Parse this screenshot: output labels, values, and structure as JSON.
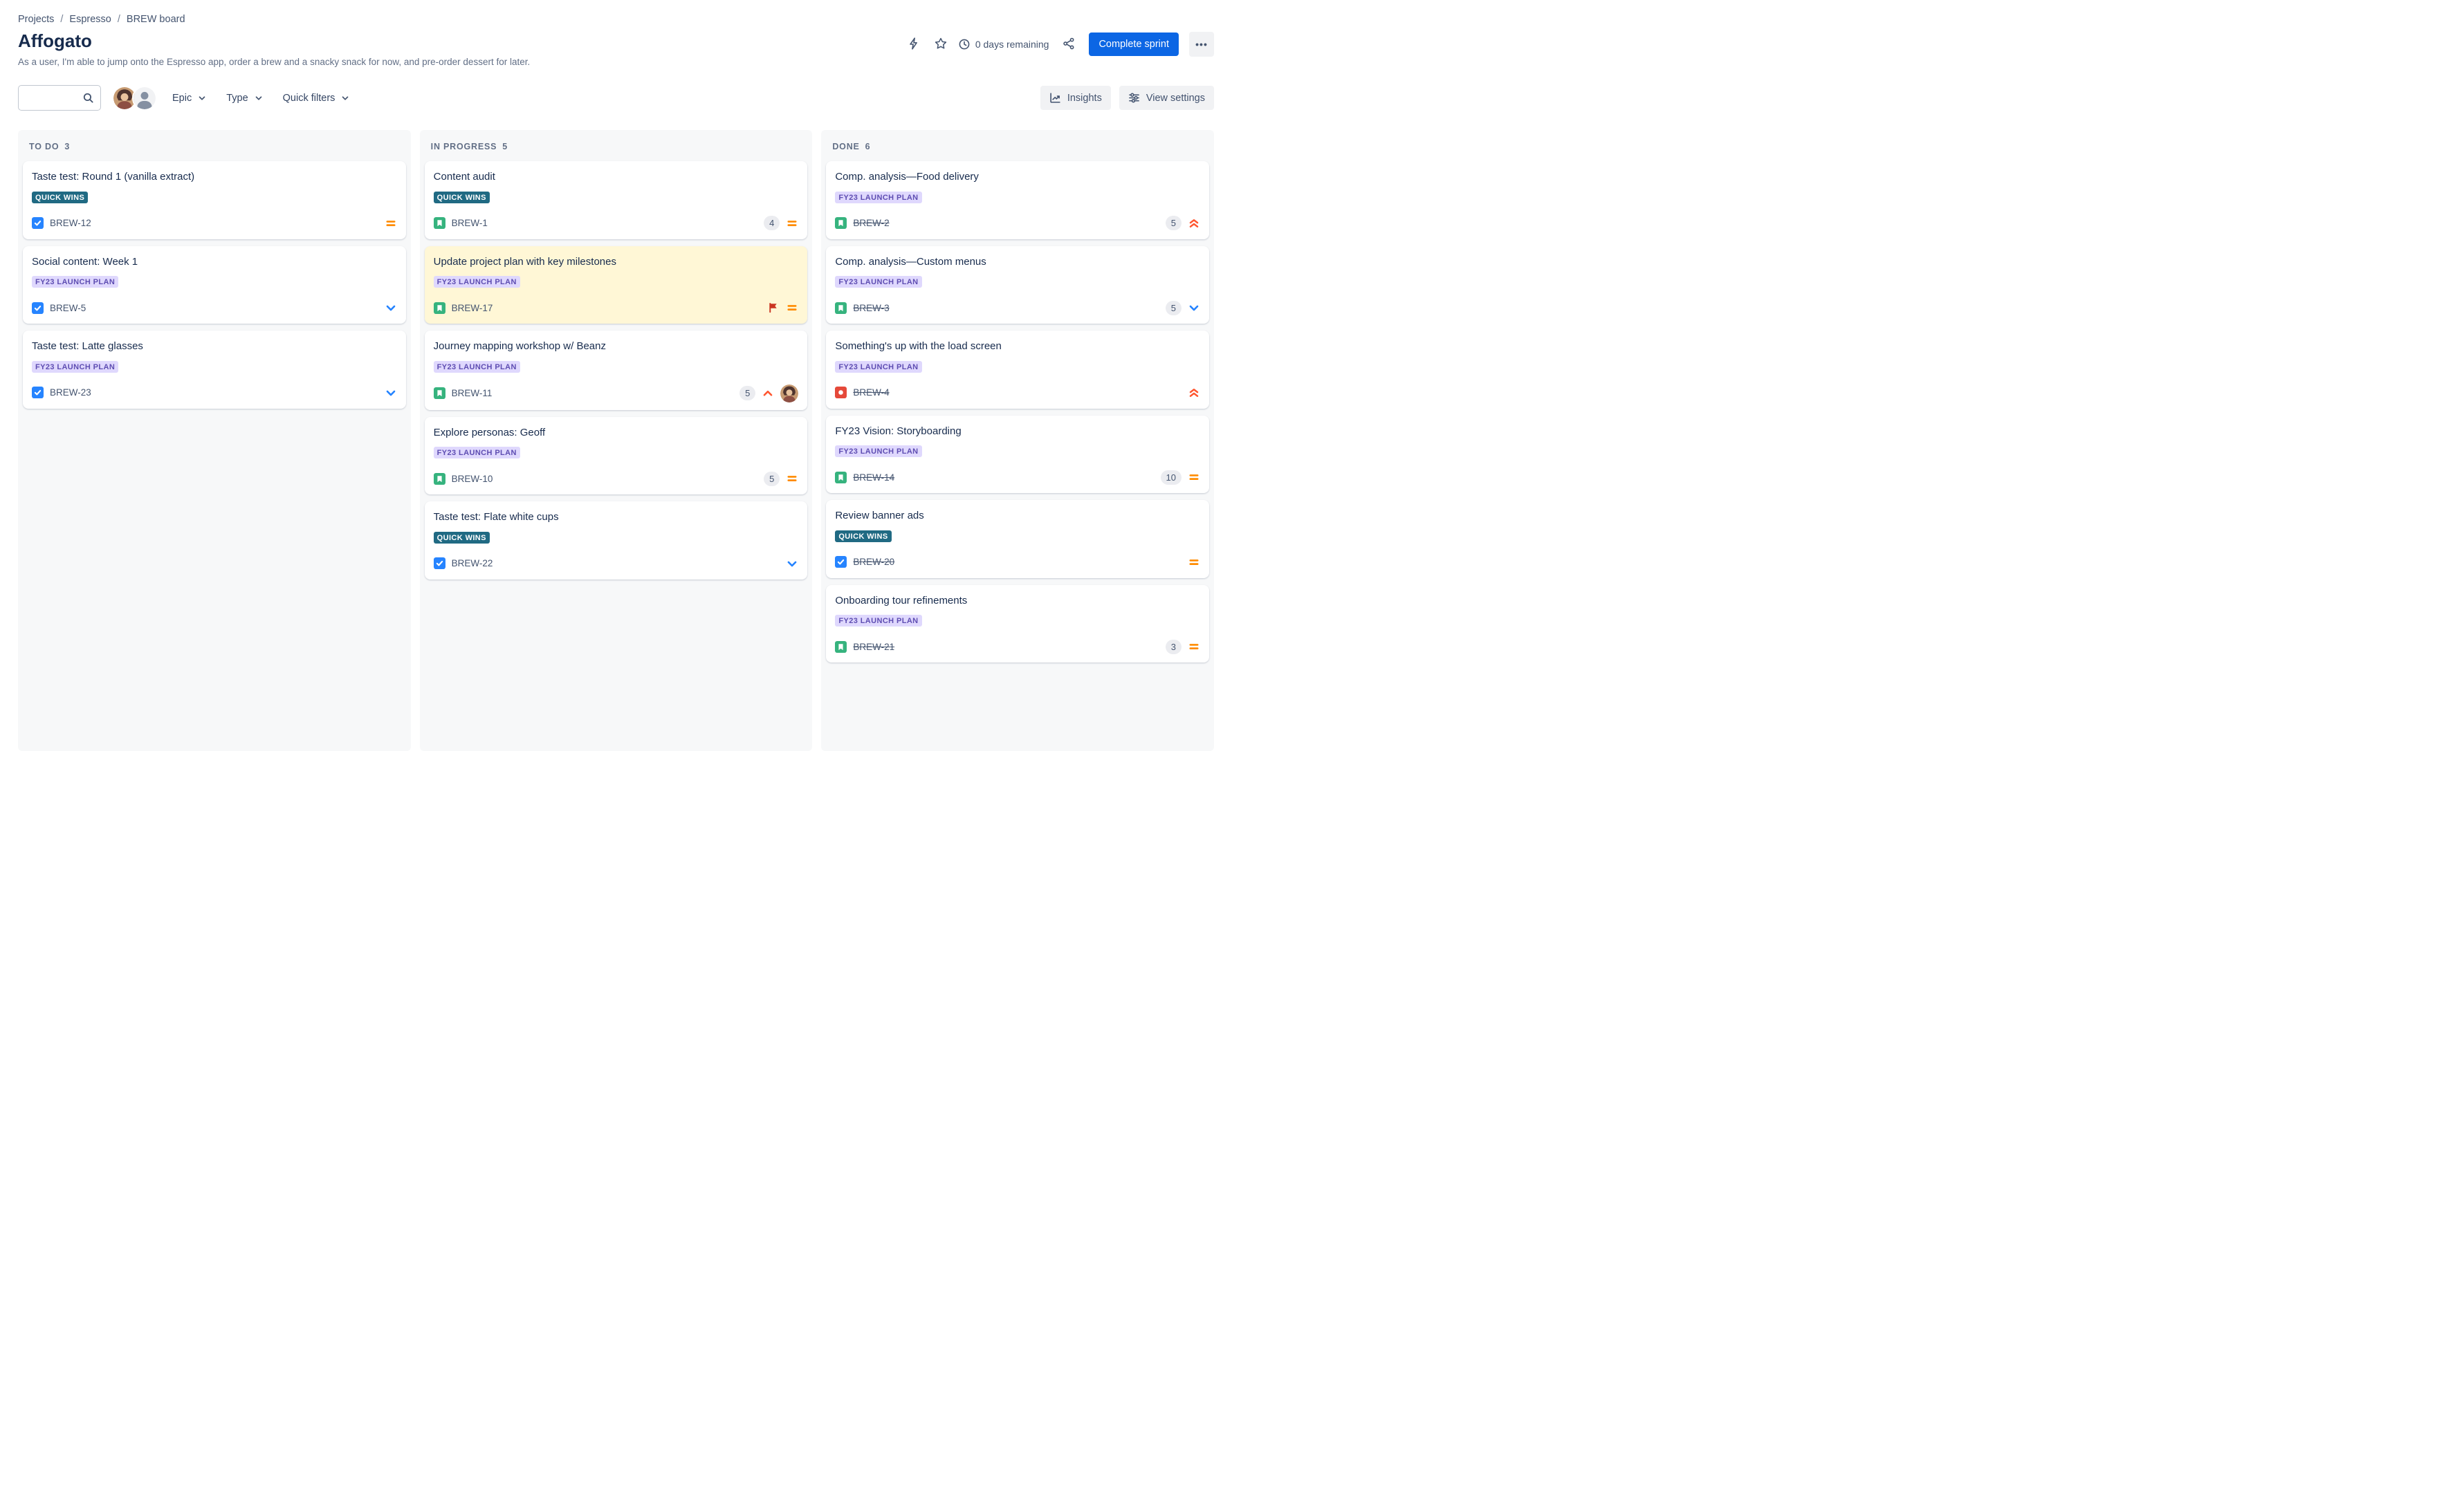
{
  "breadcrumb": {
    "items": [
      "Projects",
      "Espresso",
      "BREW board"
    ],
    "separator": "/"
  },
  "header": {
    "title": "Affogato",
    "description": "As a user, I'm able to jump onto the Espresso app, order a brew and a snacky snack for now, and pre-order dessert for later.",
    "days_remaining": "0 days remaining",
    "complete_sprint_label": "Complete sprint",
    "more_label": "•••"
  },
  "toolbar": {
    "search": {
      "value": "",
      "placeholder": ""
    },
    "filters": {
      "epic": "Epic",
      "type": "Type",
      "quick_filters": "Quick filters"
    },
    "insights_label": "Insights",
    "view_settings_label": "View settings"
  },
  "icons": {
    "search": "magnifier",
    "lightning": "bolt-outline",
    "star": "star-outline",
    "clock": "clock-outline",
    "share": "share-nodes",
    "more": "ellipsis",
    "insights": "chart-line-up",
    "view_settings": "sliders",
    "chevron_down": "chevron-down",
    "task": "blue-square-white-check",
    "story": "green-square-white-bookmark",
    "bug": "red-square-white-dot",
    "priority_medium": "orange-equals",
    "priority_low": "blue-chevron-down",
    "priority_high": "red-chevron-up",
    "priority_highest": "red-double-chevron-up",
    "flag": "red-flag"
  },
  "colors": {
    "primary_blue": "#0C66E4",
    "card_highlight": "#FFF7D6",
    "column_bg": "#F7F8F9",
    "task_blue": "#2684FF",
    "story_green": "#36B37E",
    "bug_red": "#E5493A",
    "priority_medium": "#FF8B00",
    "priority_low": "#2684FF",
    "priority_high": "#FF5630",
    "priority_highest": "#FF5630",
    "flag_red": "#CA3521"
  },
  "epics": {
    "QUICK WINS": {
      "bg": "#206A83",
      "fg": "#FFFFFF"
    },
    "FY23 LAUNCH PLAN": {
      "bg": "#DFD8FD",
      "fg": "#5E4DB2"
    }
  },
  "board": {
    "columns": [
      {
        "title": "TO DO",
        "count": "3",
        "cards": [
          {
            "title": "Taste test: Round 1 (vanilla extract)",
            "epic": "QUICK WINS",
            "key": "BREW-12",
            "type": "task",
            "priority": "medium",
            "estimate": null,
            "done": false,
            "flagged": false,
            "highlighted": false,
            "assignee": false
          },
          {
            "title": "Social content: Week 1",
            "epic": "FY23 LAUNCH PLAN",
            "key": "BREW-5",
            "type": "task",
            "priority": "low",
            "estimate": null,
            "done": false,
            "flagged": false,
            "highlighted": false,
            "assignee": false
          },
          {
            "title": "Taste test: Latte glasses",
            "epic": "FY23 LAUNCH PLAN",
            "key": "BREW-23",
            "type": "task",
            "priority": "low",
            "estimate": null,
            "done": false,
            "flagged": false,
            "highlighted": false,
            "assignee": false
          }
        ]
      },
      {
        "title": "IN PROGRESS",
        "count": "5",
        "cards": [
          {
            "title": "Content audit",
            "epic": "QUICK WINS",
            "key": "BREW-1",
            "type": "story",
            "priority": "medium",
            "estimate": "4",
            "done": false,
            "flagged": false,
            "highlighted": false,
            "assignee": false
          },
          {
            "title": "Update project plan with key milestones",
            "epic": "FY23 LAUNCH PLAN",
            "key": "BREW-17",
            "type": "story",
            "priority": "medium",
            "estimate": null,
            "done": false,
            "flagged": true,
            "highlighted": true,
            "assignee": false
          },
          {
            "title": "Journey mapping workshop w/ Beanz",
            "epic": "FY23 LAUNCH PLAN",
            "key": "BREW-11",
            "type": "story",
            "priority": "high",
            "estimate": "5",
            "done": false,
            "flagged": false,
            "highlighted": false,
            "assignee": true
          },
          {
            "title": "Explore personas: Geoff",
            "epic": "FY23 LAUNCH PLAN",
            "key": "BREW-10",
            "type": "story",
            "priority": "medium",
            "estimate": "5",
            "done": false,
            "flagged": false,
            "highlighted": false,
            "assignee": false
          },
          {
            "title": "Taste test: Flate white cups",
            "epic": "QUICK WINS",
            "key": "BREW-22",
            "type": "task",
            "priority": "low",
            "estimate": null,
            "done": false,
            "flagged": false,
            "highlighted": false,
            "assignee": false
          }
        ]
      },
      {
        "title": "DONE",
        "count": "6",
        "cards": [
          {
            "title": "Comp. analysis—Food delivery",
            "epic": "FY23 LAUNCH PLAN",
            "key": "BREW-2",
            "type": "story",
            "priority": "highest",
            "estimate": "5",
            "done": true,
            "flagged": false,
            "highlighted": false,
            "assignee": false
          },
          {
            "title": "Comp. analysis—Custom menus",
            "epic": "FY23 LAUNCH PLAN",
            "key": "BREW-3",
            "type": "story",
            "priority": "low",
            "estimate": "5",
            "done": true,
            "flagged": false,
            "highlighted": false,
            "assignee": false
          },
          {
            "title": "Something's up with the load screen",
            "epic": "FY23 LAUNCH PLAN",
            "key": "BREW-4",
            "type": "bug",
            "priority": "highest",
            "estimate": null,
            "done": true,
            "flagged": false,
            "highlighted": false,
            "assignee": false
          },
          {
            "title": "FY23 Vision: Storyboarding",
            "epic": "FY23 LAUNCH PLAN",
            "key": "BREW-14",
            "type": "story",
            "priority": "medium",
            "estimate": "10",
            "done": true,
            "flagged": false,
            "highlighted": false,
            "assignee": false
          },
          {
            "title": "Review banner ads",
            "epic": "QUICK WINS",
            "key": "BREW-20",
            "type": "task",
            "priority": "medium",
            "estimate": null,
            "done": true,
            "flagged": false,
            "highlighted": false,
            "assignee": false
          },
          {
            "title": "Onboarding tour refinements",
            "epic": "FY23 LAUNCH PLAN",
            "key": "BREW-21",
            "type": "story",
            "priority": "medium",
            "estimate": "3",
            "done": true,
            "flagged": false,
            "highlighted": false,
            "assignee": false
          }
        ]
      }
    ]
  }
}
